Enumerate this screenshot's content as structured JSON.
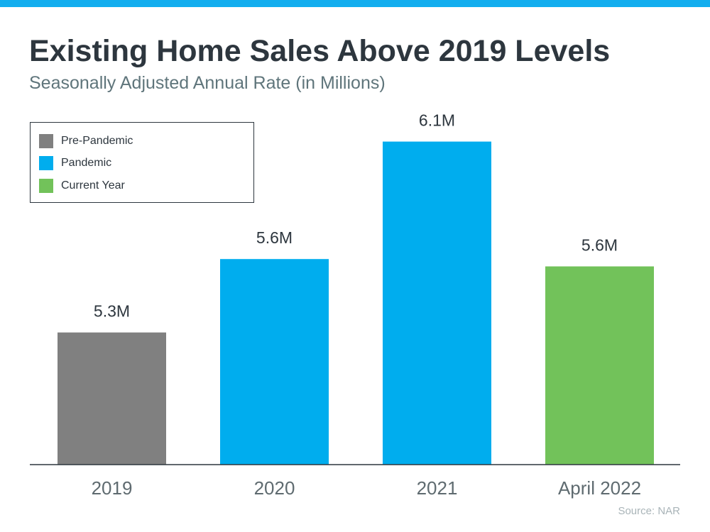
{
  "title": "Existing Home Sales Above 2019 Levels",
  "subtitle": "Seasonally Adjusted Annual Rate (in Millions)",
  "source": "Source: NAR",
  "colors": {
    "top_bar": "#12aeef",
    "pre_pandemic": "#808080",
    "pandemic": "#00adee",
    "current_year": "#72c25a"
  },
  "legend": [
    {
      "label": "Pre-Pandemic",
      "color": "#808080"
    },
    {
      "label": "Pandemic",
      "color": "#00adee"
    },
    {
      "label": "Current Year",
      "color": "#72c25a"
    }
  ],
  "chart_data": {
    "type": "bar",
    "title": "Existing Home Sales Above 2019 Levels",
    "subtitle": "Seasonally Adjusted Annual Rate (in Millions)",
    "categories": [
      "2019",
      "2020",
      "2021",
      "April 2022"
    ],
    "values": [
      5.34,
      5.64,
      6.12,
      5.61
    ],
    "data_labels": [
      "5.3M",
      "5.6M",
      "6.1M",
      "5.6M"
    ],
    "bar_colors": [
      "#808080",
      "#00adee",
      "#00adee",
      "#72c25a"
    ],
    "ylim": [
      4.8,
      6.2
    ],
    "xlabel": "",
    "ylabel": "",
    "grid": false,
    "legend_position": "top-left"
  }
}
